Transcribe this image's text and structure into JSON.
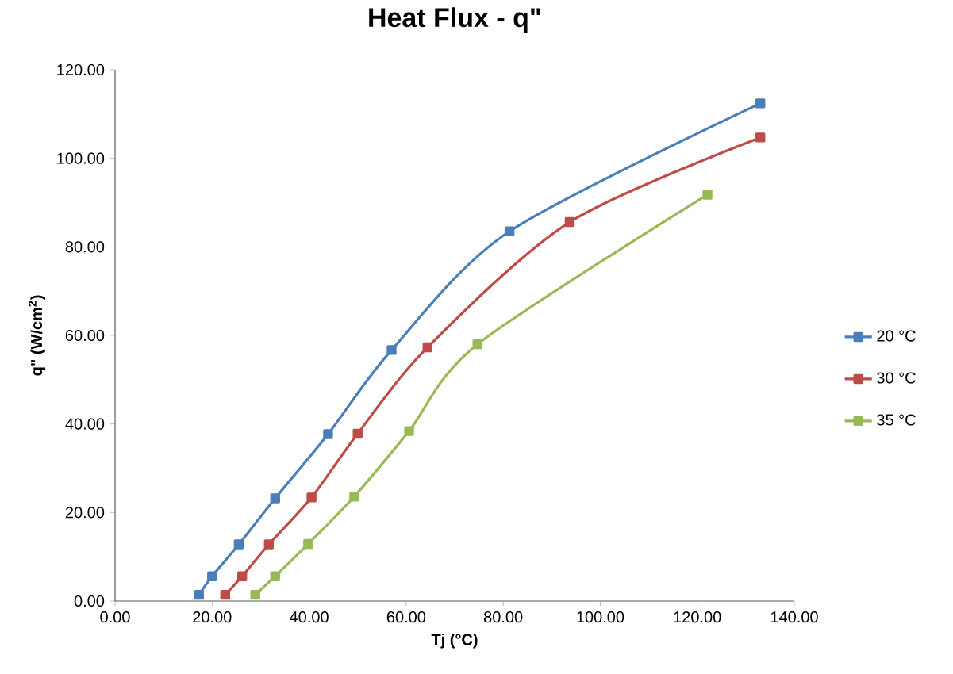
{
  "chart_data": {
    "type": "line",
    "title": "Heat Flux - q\"",
    "xlabel": "Tj (°C)",
    "ylabel": "q\" (W/cm$^{2}$)",
    "xlim": [
      0,
      140
    ],
    "ylim": [
      0,
      120
    ],
    "xticks": [
      {
        "value": 0,
        "label": "0.00"
      },
      {
        "value": 20,
        "label": "20.00"
      },
      {
        "value": 40,
        "label": "40.00"
      },
      {
        "value": 60,
        "label": "60.00"
      },
      {
        "value": 80,
        "label": "80.00"
      },
      {
        "value": 100,
        "label": "100.00"
      },
      {
        "value": 120,
        "label": "120.00"
      },
      {
        "value": 140,
        "label": "140.00"
      }
    ],
    "yticks": [
      {
        "value": 0,
        "label": "0.00"
      },
      {
        "value": 20,
        "label": "20.00"
      },
      {
        "value": 40,
        "label": "40.00"
      },
      {
        "value": 60,
        "label": "60.00"
      },
      {
        "value": 80,
        "label": "80.00"
      },
      {
        "value": 100,
        "label": "100.00"
      },
      {
        "value": 120,
        "label": "120.00"
      }
    ],
    "grid": false,
    "legend": "right",
    "marker": "square",
    "line_style": "solid",
    "series": [
      {
        "name": "20 °C",
        "color": "#4a7ebb",
        "x": [
          17.3,
          20.0,
          25.5,
          33.0,
          43.9,
          57.0,
          81.3,
          133.0
        ],
        "values": [
          1.4,
          5.6,
          12.8,
          23.2,
          37.7,
          56.7,
          83.5,
          112.4
        ]
      },
      {
        "name": "30 °C",
        "color": "#be4b48",
        "x": [
          22.7,
          26.2,
          31.7,
          40.5,
          50.0,
          64.4,
          93.7,
          133.0
        ],
        "values": [
          1.4,
          5.6,
          12.8,
          23.4,
          37.8,
          57.3,
          85.6,
          104.7
        ]
      },
      {
        "name": "35 °C",
        "color": "#98b954",
        "x": [
          28.9,
          33.0,
          39.8,
          49.3,
          60.6,
          74.7,
          122.1
        ],
        "values": [
          1.4,
          5.6,
          12.9,
          23.6,
          38.4,
          58.0,
          91.8
        ]
      }
    ]
  }
}
